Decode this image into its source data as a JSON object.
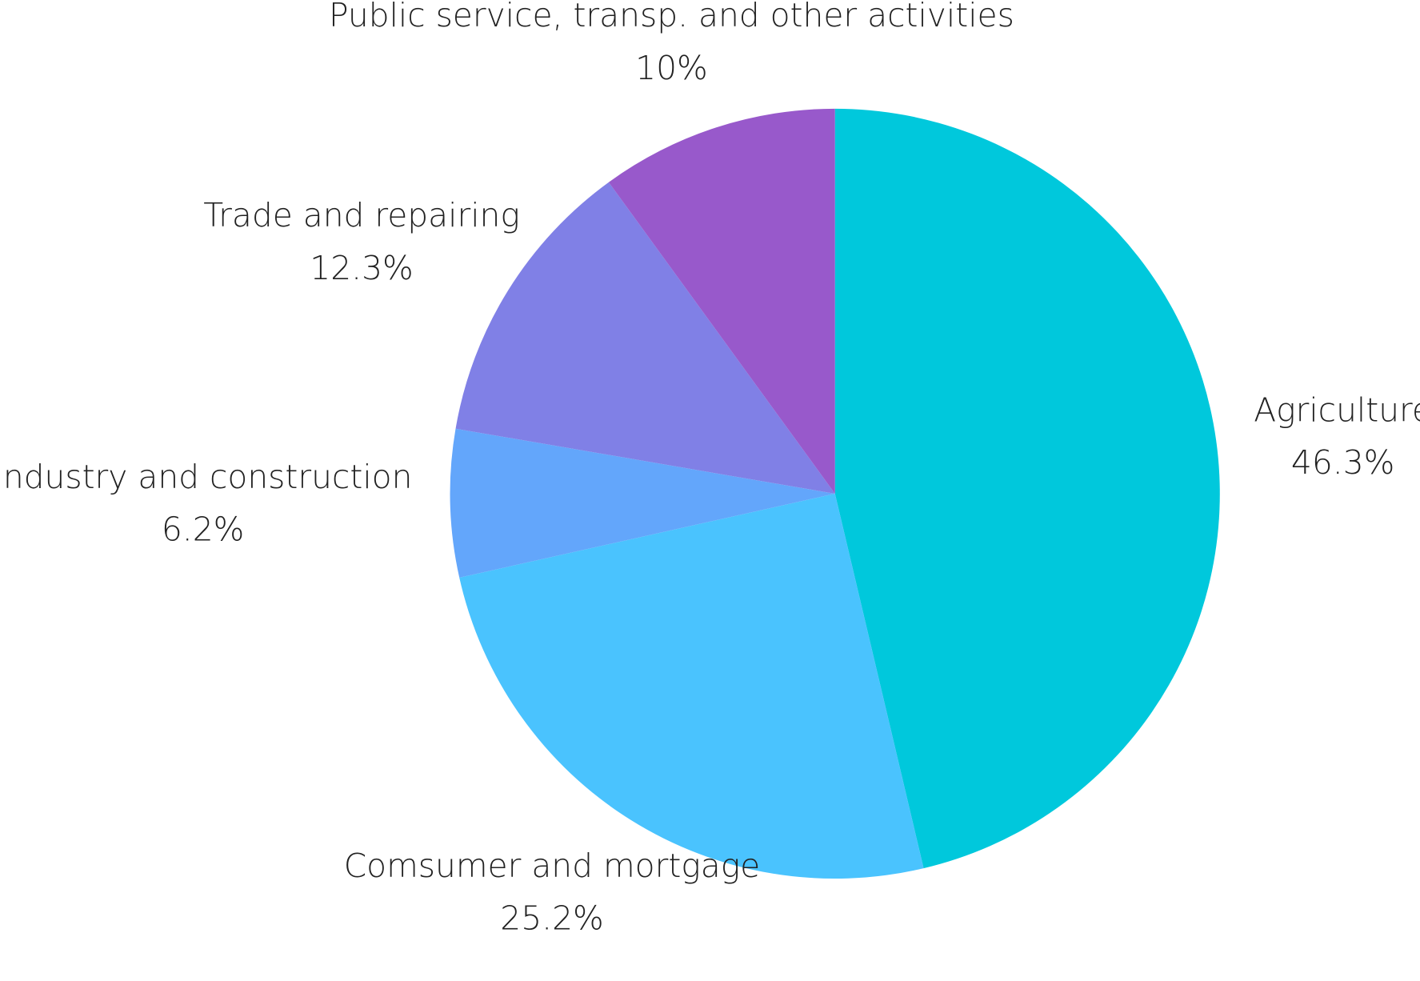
{
  "chart_data": {
    "type": "pie",
    "categories": [
      "Agriculture",
      "Comsumer and mortgage",
      "Industry and construction",
      "Trade and repairing",
      "Public service, transp. and other activities"
    ],
    "values": [
      46.3,
      25.2,
      6.2,
      12.3,
      10
    ],
    "value_labels": [
      "46.3%",
      "25.2%",
      "6.2%",
      "12.3%",
      "10%"
    ],
    "colors": [
      "#00c8dc",
      "#4ac3fe",
      "#63a6fb",
      "#8080e6",
      "#9859cb"
    ]
  }
}
